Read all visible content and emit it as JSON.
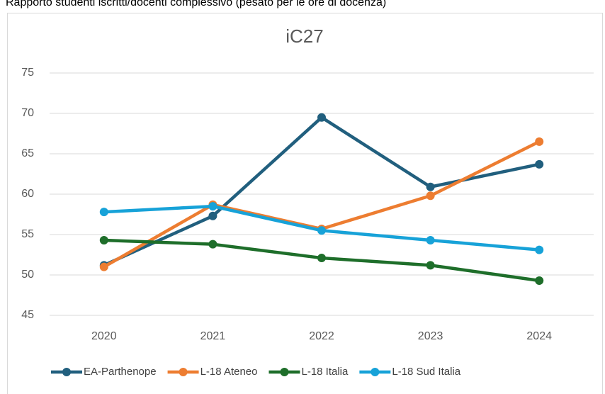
{
  "chart_data": {
    "type": "line",
    "subtitle": "Rapporto studenti iscritti/docenti complessivo (pesato per le ore di docenza)",
    "title": "iC27",
    "categories": [
      "2020",
      "2021",
      "2022",
      "2023",
      "2024"
    ],
    "series": [
      {
        "name": "EA-Parthenope",
        "color": "#215f7e",
        "values": [
          51.2,
          57.3,
          69.5,
          60.9,
          63.7
        ]
      },
      {
        "name": "L-18 Ateneo",
        "color": "#ed7d31",
        "values": [
          51.0,
          58.7,
          55.7,
          59.8,
          66.5
        ]
      },
      {
        "name": "L-18 Italia",
        "color": "#1e6e2a",
        "values": [
          54.3,
          53.8,
          52.1,
          51.2,
          49.3
        ]
      },
      {
        "name": "L-18 Sud Italia",
        "color": "#17a2d8",
        "values": [
          57.8,
          58.5,
          55.5,
          54.3,
          53.1
        ]
      }
    ],
    "ylim": [
      45,
      75
    ],
    "yticks": [
      45,
      50,
      55,
      60,
      65,
      70,
      75
    ],
    "grid": true,
    "legend": "bottom"
  }
}
